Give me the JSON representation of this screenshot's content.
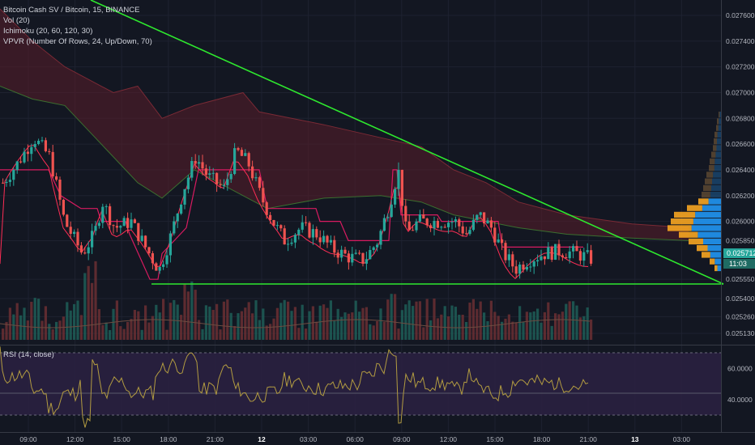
{
  "legend": {
    "symbol": "Bitcoin Cash SV / Bitcoin, 15, BINANCE",
    "volume": "Vol (20)",
    "ichimoku": "Ichimoku (20, 60, 120, 30)",
    "vpvr": "VPVR (Number Of Rows, 24, Up/Down, 70)"
  },
  "rsi_legend": "RSI (14, close)",
  "colors": {
    "background": "#131722",
    "up": "#26a69a",
    "down": "#ef5350",
    "trendline": "#2ee82e",
    "cloud": "#5a1e2a",
    "base_line": "#d81b60",
    "conversion_line": "#ff2d55",
    "lagging_line": "#43a047",
    "vpvr_up": "#2196f3",
    "vpvr_down": "#f7a521",
    "rsi_band": "#2a2040",
    "rsi_line": "#b39c41",
    "price_label": "#26a69a"
  },
  "chart_data": {
    "type": "candlestick",
    "price_axis": {
      "ticks": [
        "0.027600",
        "0.027400",
        "0.027200",
        "0.027000",
        "0.026800",
        "0.026600",
        "0.026400",
        "0.026200",
        "0.026000",
        "0.025850",
        "0.025712",
        "0.025550",
        "0.025400",
        "0.025260",
        "0.025130"
      ],
      "ylim": [
        0.0251,
        0.0277
      ]
    },
    "current_price": {
      "value": "0.025712",
      "countdown": "11:03"
    },
    "time_axis": {
      "ticks": [
        "09:00",
        "12:00",
        "15:00",
        "18:00",
        "21:00",
        "12",
        "03:00",
        "06:00",
        "09:00",
        "12:00",
        "15:00",
        "18:00",
        "21:00",
        "13",
        "03:00"
      ]
    },
    "trendlines": [
      {
        "name": "descending",
        "from": [
          "08:30",
          0.0277
        ],
        "to": [
          "00:00",
          0.02552
        ]
      },
      {
        "name": "support",
        "from": [
          "17:00",
          0.02552
        ],
        "to": [
          "00:00",
          0.02552
        ]
      }
    ],
    "rsi": {
      "ticks": [
        "60.0000",
        "40.0000"
      ],
      "upper_band": 70,
      "lower_band": 30,
      "mid": 44
    },
    "vpvr_rows": 24
  }
}
